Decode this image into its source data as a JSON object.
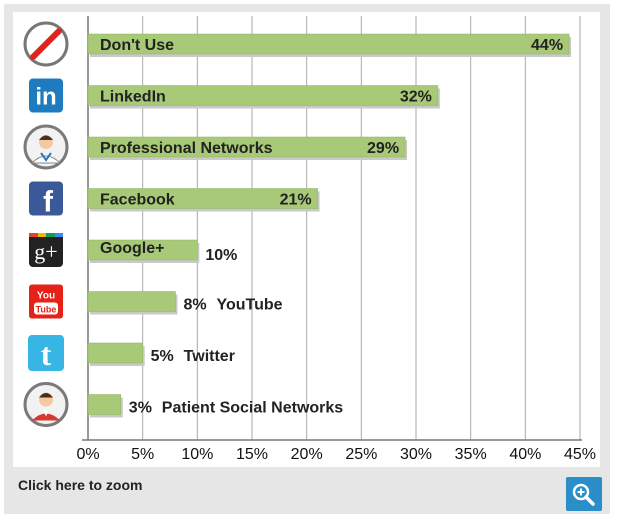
{
  "chart_data": {
    "type": "bar",
    "orientation": "horizontal",
    "categories": [
      "Don't Use",
      "LinkedIn",
      "Professional Networks",
      "Facebook",
      "Google+",
      "YouTube",
      "Twitter",
      "Patient Social Networks"
    ],
    "values": [
      44,
      32,
      29,
      21,
      10,
      8,
      5,
      3
    ],
    "value_labels": [
      "44%",
      "32%",
      "29%",
      "21%",
      "10%",
      "8%",
      "5%",
      "3%"
    ],
    "icons": [
      "no-entry-icon",
      "linkedin-icon",
      "doctor-avatar-icon",
      "facebook-icon",
      "google-plus-icon",
      "youtube-icon",
      "twitter-icon",
      "patient-avatar-icon"
    ],
    "xticks": [
      "0%",
      "5%",
      "10%",
      "15%",
      "20%",
      "25%",
      "30%",
      "35%",
      "40%",
      "45%"
    ],
    "xlim": [
      0,
      45
    ],
    "grid": true,
    "bar_color": "#a8c977",
    "grid_color": "#aaaaaa"
  },
  "footer": {
    "zoom_text": "Click here to zoom",
    "zoom_icon": "zoom-in-icon",
    "zoom_button_color": "#2b8ec9"
  }
}
